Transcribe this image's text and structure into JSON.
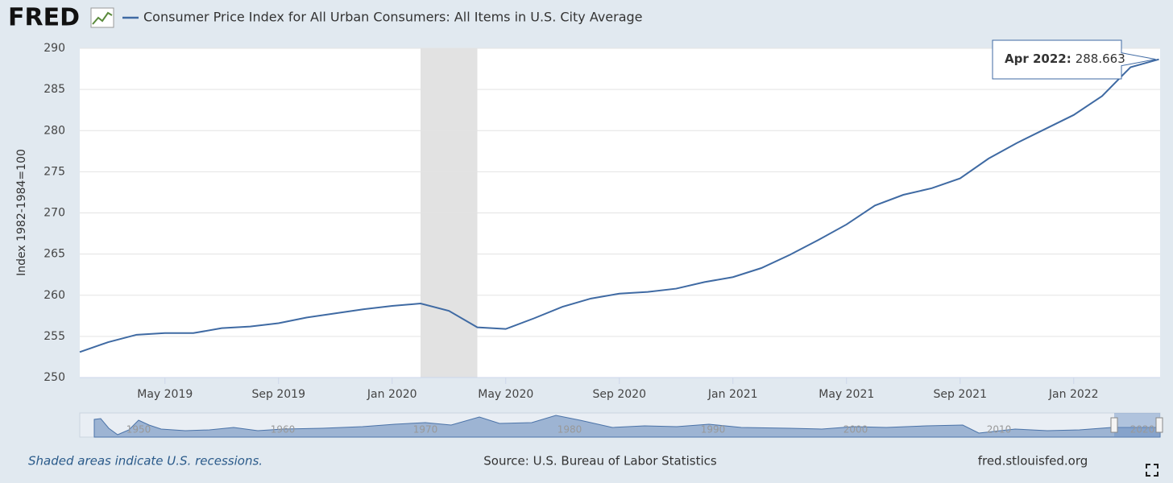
{
  "chart_data": {
    "type": "line",
    "logo": "FRED",
    "y_label": "Index 1982-1984=100",
    "x": [
      "2019-02",
      "2019-03",
      "2019-04",
      "2019-05",
      "2019-06",
      "2019-07",
      "2019-08",
      "2019-09",
      "2019-10",
      "2019-11",
      "2019-12",
      "2020-01",
      "2020-02",
      "2020-03",
      "2020-04",
      "2020-05",
      "2020-06",
      "2020-07",
      "2020-08",
      "2020-09",
      "2020-10",
      "2020-11",
      "2020-12",
      "2021-01",
      "2021-02",
      "2021-03",
      "2021-04",
      "2021-05",
      "2021-06",
      "2021-07",
      "2021-08",
      "2021-09",
      "2021-10",
      "2021-11",
      "2021-12",
      "2022-01",
      "2022-02",
      "2022-03",
      "2022-04"
    ],
    "series": [
      {
        "name": "Consumer Price Index for All Urban Consumers: All Items in U.S. City Average",
        "color": "#3f6aa3",
        "values": [
          253.1,
          254.3,
          255.2,
          255.4,
          255.4,
          256.0,
          256.2,
          256.6,
          257.3,
          257.8,
          258.3,
          258.7,
          259.0,
          258.1,
          256.1,
          255.9,
          257.2,
          258.6,
          259.6,
          260.2,
          260.4,
          260.8,
          261.6,
          262.2,
          263.3,
          264.9,
          266.7,
          268.6,
          270.9,
          272.2,
          273.0,
          274.2,
          276.6,
          278.5,
          280.2,
          281.9,
          284.2,
          287.7,
          288.663
        ]
      }
    ],
    "xlim": [
      "2019-02",
      "2022-04"
    ],
    "xticks": [
      {
        "value": "2019-05",
        "label": "May 2019"
      },
      {
        "value": "2019-09",
        "label": "Sep 2019"
      },
      {
        "value": "2020-01",
        "label": "Jan 2020"
      },
      {
        "value": "2020-05",
        "label": "May 2020"
      },
      {
        "value": "2020-09",
        "label": "Sep 2020"
      },
      {
        "value": "2021-01",
        "label": "Jan 2021"
      },
      {
        "value": "2021-05",
        "label": "May 2021"
      },
      {
        "value": "2021-09",
        "label": "Sep 2021"
      },
      {
        "value": "2022-01",
        "label": "Jan 2022"
      }
    ],
    "ylim": [
      250,
      290
    ],
    "yticks": [
      250,
      255,
      260,
      265,
      270,
      275,
      280,
      285,
      290
    ],
    "grid": true,
    "recessions": [
      {
        "start": "2020-02",
        "end": "2020-04"
      }
    ],
    "tooltip": {
      "label": "Apr 2022:",
      "index": 38
    },
    "navigator_labels": [
      "1950",
      "1960",
      "1970",
      "1980",
      "1990",
      "2000",
      "2010",
      "2020"
    ],
    "footnote": "Shaded areas indicate U.S. recessions.",
    "source": "Source: U.S. Bureau of Labor Statistics",
    "site": "fred.stlouisfed.org"
  }
}
